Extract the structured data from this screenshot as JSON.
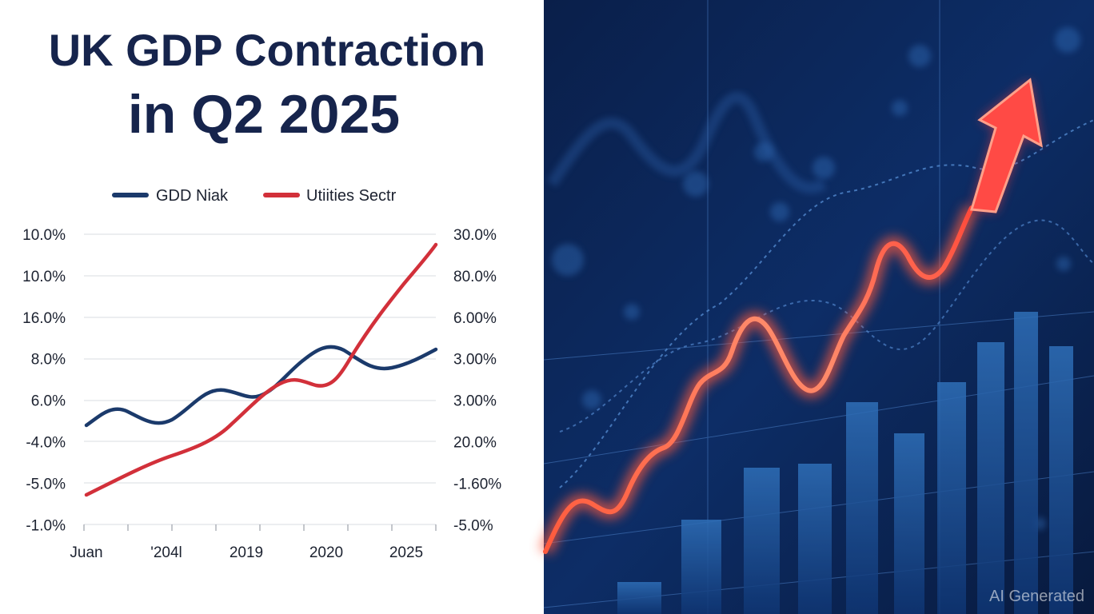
{
  "title_lines": [
    "UK GDP Contraction",
    "in Q2 2025"
  ],
  "legend": [
    "GDD Niak",
    "Utiities Sectr"
  ],
  "left_axis": [
    "10.0%",
    "10.0%",
    "16.0%",
    "8.0%",
    "6.0%",
    "-4.0%",
    "-5.0%",
    "-1.0%"
  ],
  "right_axis": [
    "30.0%",
    "80.0%",
    "6.00%",
    "3.00%",
    "3.00%",
    "20.0%",
    "-1.60%",
    "-5.0%"
  ],
  "x_axis": [
    "Juan",
    "'204l",
    "2019",
    "2020",
    "2025"
  ],
  "watermark": "AI Generated"
}
